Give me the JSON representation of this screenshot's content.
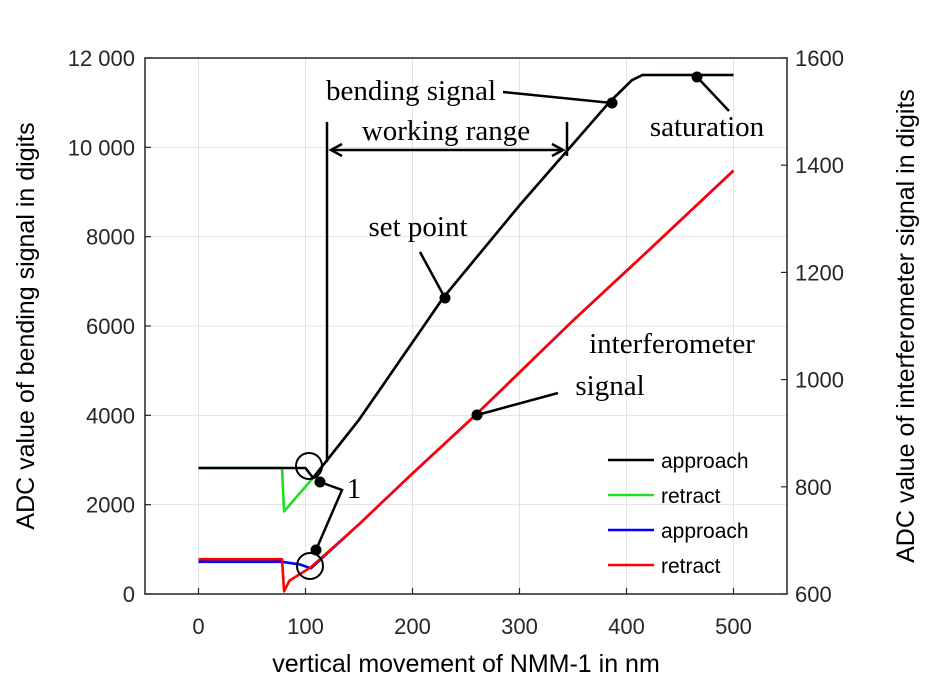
{
  "chart_data": {
    "type": "line",
    "xlabel": "vertical movement of NMM-1 in nm",
    "ylabel_left": "ADC value of bending signal in digits",
    "ylabel_right": "ADC value of interferometer signal in digits",
    "xlim": [
      -50,
      550
    ],
    "ylim_left": [
      0,
      12000
    ],
    "ylim_right": [
      600,
      1600
    ],
    "x_ticks": [
      "0",
      "100",
      "200",
      "300",
      "400",
      "500"
    ],
    "x_tick_values": [
      0,
      100,
      200,
      300,
      400,
      500
    ],
    "y_left_ticks": [
      "0",
      "2000",
      "4000",
      "6000",
      "8000",
      "10 000",
      "12 000"
    ],
    "y_left_tick_values": [
      0,
      2000,
      4000,
      6000,
      8000,
      10000,
      12000
    ],
    "y_right_ticks": [
      "600",
      "800",
      "1000",
      "1200",
      "1400",
      "1600"
    ],
    "y_right_tick_values": [
      600,
      800,
      1000,
      1200,
      1400,
      1600
    ],
    "grid": true,
    "legend_position": "bottom-right",
    "series": [
      {
        "name": "approach",
        "axis": "left",
        "color": "#000000",
        "x": [
          0,
          100,
          107,
          150,
          229,
          300,
          384,
          405,
          415,
          500
        ],
        "y": [
          2820,
          2820,
          2600,
          3900,
          6640,
          8700,
          11010,
          11500,
          11620,
          11620
        ]
      },
      {
        "name": "retract",
        "axis": "left",
        "color": "#22dd22",
        "x": [
          0,
          78,
          80,
          107,
          150,
          229,
          300,
          384,
          405,
          415,
          500
        ],
        "y": [
          2820,
          2820,
          1850,
          2600,
          3900,
          6640,
          8700,
          11010,
          11500,
          11620,
          11620
        ]
      },
      {
        "name": "approach",
        "axis": "right",
        "color": "#0000ff",
        "x": [
          0,
          78,
          95,
          105,
          150,
          200,
          259,
          350,
          420,
          500
        ],
        "y": [
          660,
          660,
          655,
          648,
          730,
          825,
          934,
          1110,
          1240,
          1390
        ]
      },
      {
        "name": "retract",
        "axis": "right",
        "color": "#ff0000",
        "x": [
          0,
          78,
          80,
          85,
          105,
          150,
          200,
          259,
          350,
          420,
          500
        ],
        "y": [
          665,
          665,
          605,
          625,
          650,
          730,
          825,
          934,
          1110,
          1240,
          1390
        ]
      }
    ],
    "annotations": {
      "bending_signal": "bending signal",
      "working_range": "working range",
      "saturation": "saturation",
      "set_point": "set point",
      "interferometer_1": "interferometer",
      "interferometer_2": "signal",
      "marker_1": "1"
    },
    "legend": [
      "approach",
      "retract",
      "approach",
      "retract"
    ]
  }
}
